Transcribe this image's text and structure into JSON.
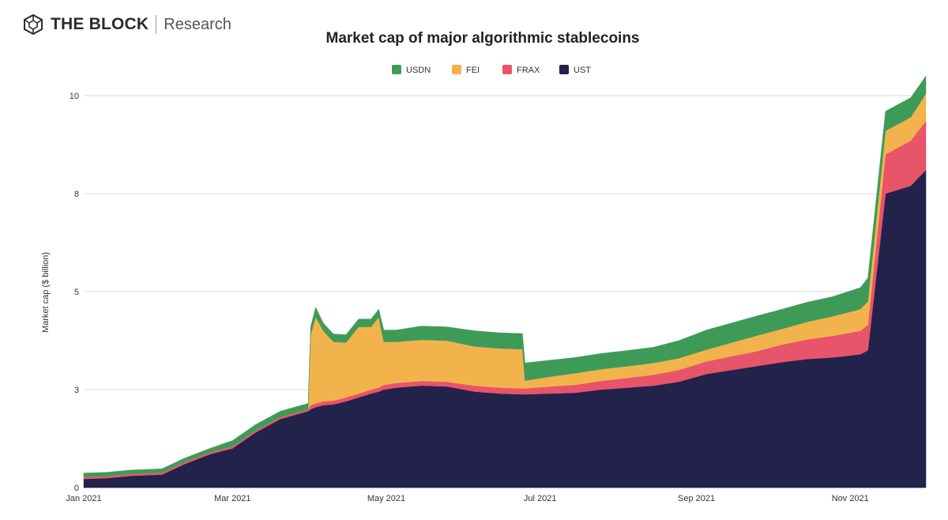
{
  "brand": {
    "name": "THE BLOCK",
    "sub": "Research"
  },
  "chart_data": {
    "type": "area",
    "stacked": true,
    "title": "Market cap of major algorithmic stablecoins",
    "xlabel": "",
    "ylabel": "Market cap ($ billion)",
    "ylim": [
      0,
      10
    ],
    "yticks": [
      0,
      2.5,
      5,
      7.5,
      10
    ],
    "ytick_labels": [
      "0",
      "3",
      "5",
      "8",
      "10"
    ],
    "xticks": [
      {
        "label": "Jan 2021",
        "date": "2021-01-01"
      },
      {
        "label": "Mar 2021",
        "date": "2021-03-01"
      },
      {
        "label": "May 2021",
        "date": "2021-05-01"
      },
      {
        "label": "Jul 2021",
        "date": "2021-07-01"
      },
      {
        "label": "Sep 2021",
        "date": "2021-09-01"
      },
      {
        "label": "Nov 2021",
        "date": "2021-11-01"
      }
    ],
    "legend_position": "top-center",
    "dates": [
      "2021-01-01",
      "2021-01-10",
      "2021-01-20",
      "2021-02-01",
      "2021-02-10",
      "2021-02-20",
      "2021-03-01",
      "2021-03-10",
      "2021-03-20",
      "2021-03-31",
      "2021-04-01",
      "2021-04-03",
      "2021-04-06",
      "2021-04-10",
      "2021-04-15",
      "2021-04-20",
      "2021-04-25",
      "2021-04-28",
      "2021-04-30",
      "2021-05-05",
      "2021-05-15",
      "2021-05-25",
      "2021-06-05",
      "2021-06-15",
      "2021-06-24",
      "2021-06-25",
      "2021-07-05",
      "2021-07-15",
      "2021-07-25",
      "2021-08-05",
      "2021-08-15",
      "2021-08-25",
      "2021-09-05",
      "2021-09-15",
      "2021-09-25",
      "2021-10-05",
      "2021-10-15",
      "2021-10-25",
      "2021-11-05",
      "2021-11-08",
      "2021-11-15",
      "2021-11-25",
      "2021-12-01"
    ],
    "series": [
      {
        "name": "UST",
        "color": "#22224a",
        "values": [
          0.22,
          0.24,
          0.3,
          0.33,
          0.6,
          0.85,
          1.0,
          1.4,
          1.75,
          1.95,
          2.0,
          2.05,
          2.1,
          2.12,
          2.2,
          2.3,
          2.4,
          2.45,
          2.5,
          2.55,
          2.6,
          2.58,
          2.45,
          2.4,
          2.38,
          2.38,
          2.4,
          2.42,
          2.5,
          2.55,
          2.6,
          2.7,
          2.9,
          3.0,
          3.1,
          3.2,
          3.28,
          3.32,
          3.4,
          3.5,
          7.5,
          7.7,
          8.1
        ]
      },
      {
        "name": "FRAX",
        "color": "#e8546a",
        "values": [
          0.05,
          0.05,
          0.05,
          0.05,
          0.05,
          0.05,
          0.05,
          0.05,
          0.05,
          0.05,
          0.1,
          0.1,
          0.1,
          0.1,
          0.1,
          0.1,
          0.1,
          0.1,
          0.12,
          0.12,
          0.12,
          0.12,
          0.15,
          0.15,
          0.15,
          0.15,
          0.18,
          0.2,
          0.22,
          0.25,
          0.28,
          0.3,
          0.32,
          0.35,
          0.38,
          0.45,
          0.5,
          0.55,
          0.6,
          0.65,
          1.0,
          1.15,
          1.25
        ]
      },
      {
        "name": "FEI",
        "color": "#f3b34c",
        "values": [
          0.0,
          0.0,
          0.0,
          0.0,
          0.0,
          0.0,
          0.0,
          0.0,
          0.0,
          0.0,
          1.8,
          2.2,
          1.8,
          1.5,
          1.4,
          1.7,
          1.6,
          1.8,
          1.1,
          1.05,
          1.05,
          1.05,
          1.0,
          1.0,
          1.0,
          0.2,
          0.25,
          0.3,
          0.3,
          0.3,
          0.3,
          0.3,
          0.3,
          0.35,
          0.4,
          0.4,
          0.45,
          0.5,
          0.55,
          0.6,
          0.6,
          0.6,
          0.7
        ]
      },
      {
        "name": "USDN",
        "color": "#3e9b57",
        "values": [
          0.1,
          0.1,
          0.1,
          0.1,
          0.1,
          0.1,
          0.15,
          0.15,
          0.15,
          0.15,
          0.2,
          0.25,
          0.2,
          0.2,
          0.2,
          0.2,
          0.2,
          0.2,
          0.3,
          0.3,
          0.35,
          0.35,
          0.4,
          0.4,
          0.4,
          0.45,
          0.42,
          0.4,
          0.4,
          0.4,
          0.4,
          0.45,
          0.5,
          0.5,
          0.5,
          0.5,
          0.5,
          0.5,
          0.55,
          0.6,
          0.5,
          0.5,
          0.45
        ]
      }
    ],
    "legend_order": [
      "USDN",
      "FEI",
      "FRAX",
      "UST"
    ]
  }
}
